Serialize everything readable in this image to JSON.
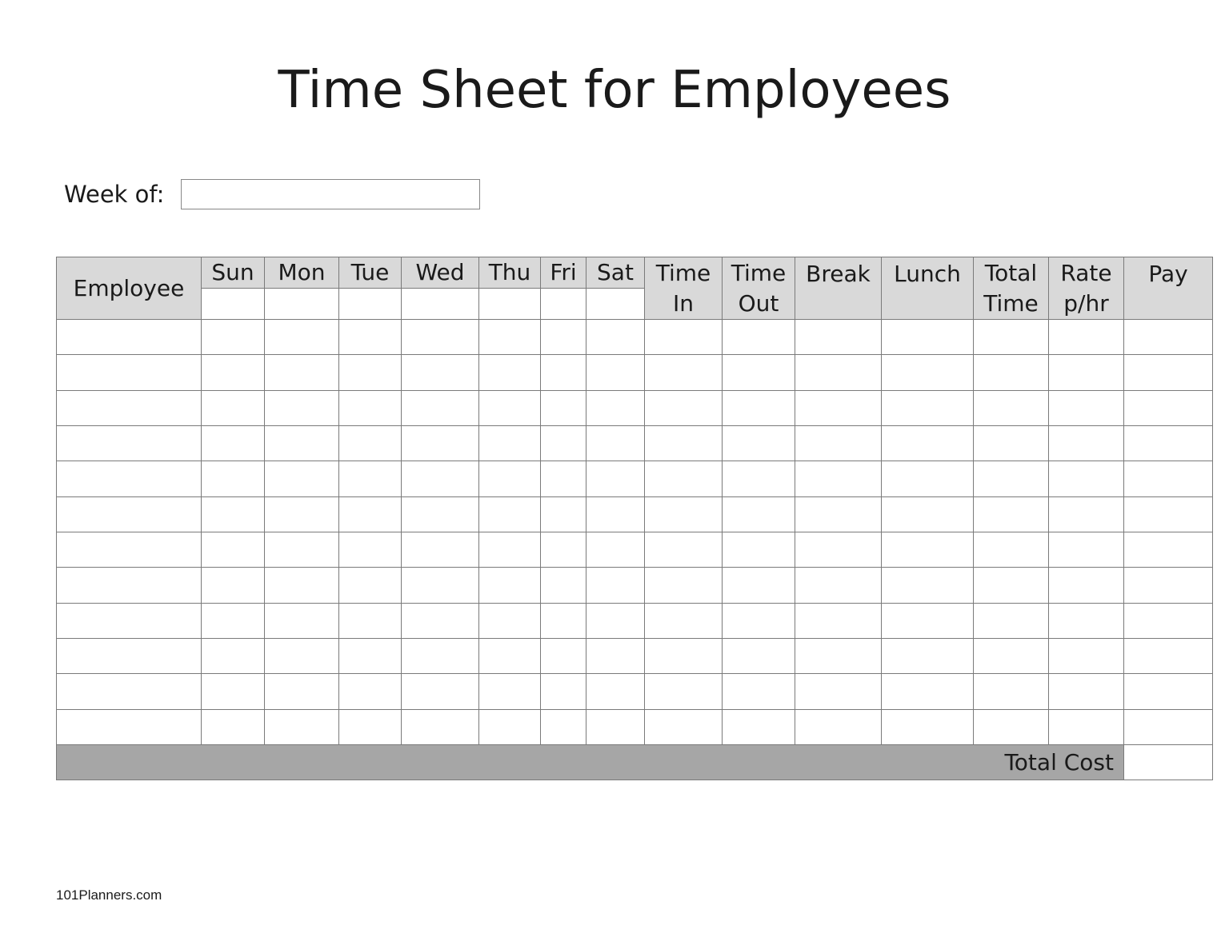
{
  "title": "Time Sheet for Employees",
  "week_of": {
    "label": "Week of:",
    "value": ""
  },
  "table": {
    "columns": [
      {
        "label": "Employee",
        "type": "main"
      },
      {
        "label": "Sun",
        "type": "day"
      },
      {
        "label": "Mon",
        "type": "day"
      },
      {
        "label": "Tue",
        "type": "day"
      },
      {
        "label": "Wed",
        "type": "day"
      },
      {
        "label": "Thu",
        "type": "day"
      },
      {
        "label": "Fri",
        "type": "day"
      },
      {
        "label": "Sat",
        "type": "day"
      },
      {
        "label": "Time In",
        "type": "main"
      },
      {
        "label": "Time Out",
        "type": "main"
      },
      {
        "label": "Break",
        "type": "top"
      },
      {
        "label": "Lunch",
        "type": "top"
      },
      {
        "label": "Total Time",
        "type": "main"
      },
      {
        "label": "Rate p/hr",
        "type": "main"
      },
      {
        "label": "Pay",
        "type": "top"
      }
    ],
    "row_count": 12,
    "total_label": "Total Cost",
    "total_value": ""
  },
  "colors": {
    "header_bg": "#d9d9d9",
    "total_bg": "#a6a6a6",
    "border": "#7a7a7a"
  },
  "footer": "101Planners.com"
}
